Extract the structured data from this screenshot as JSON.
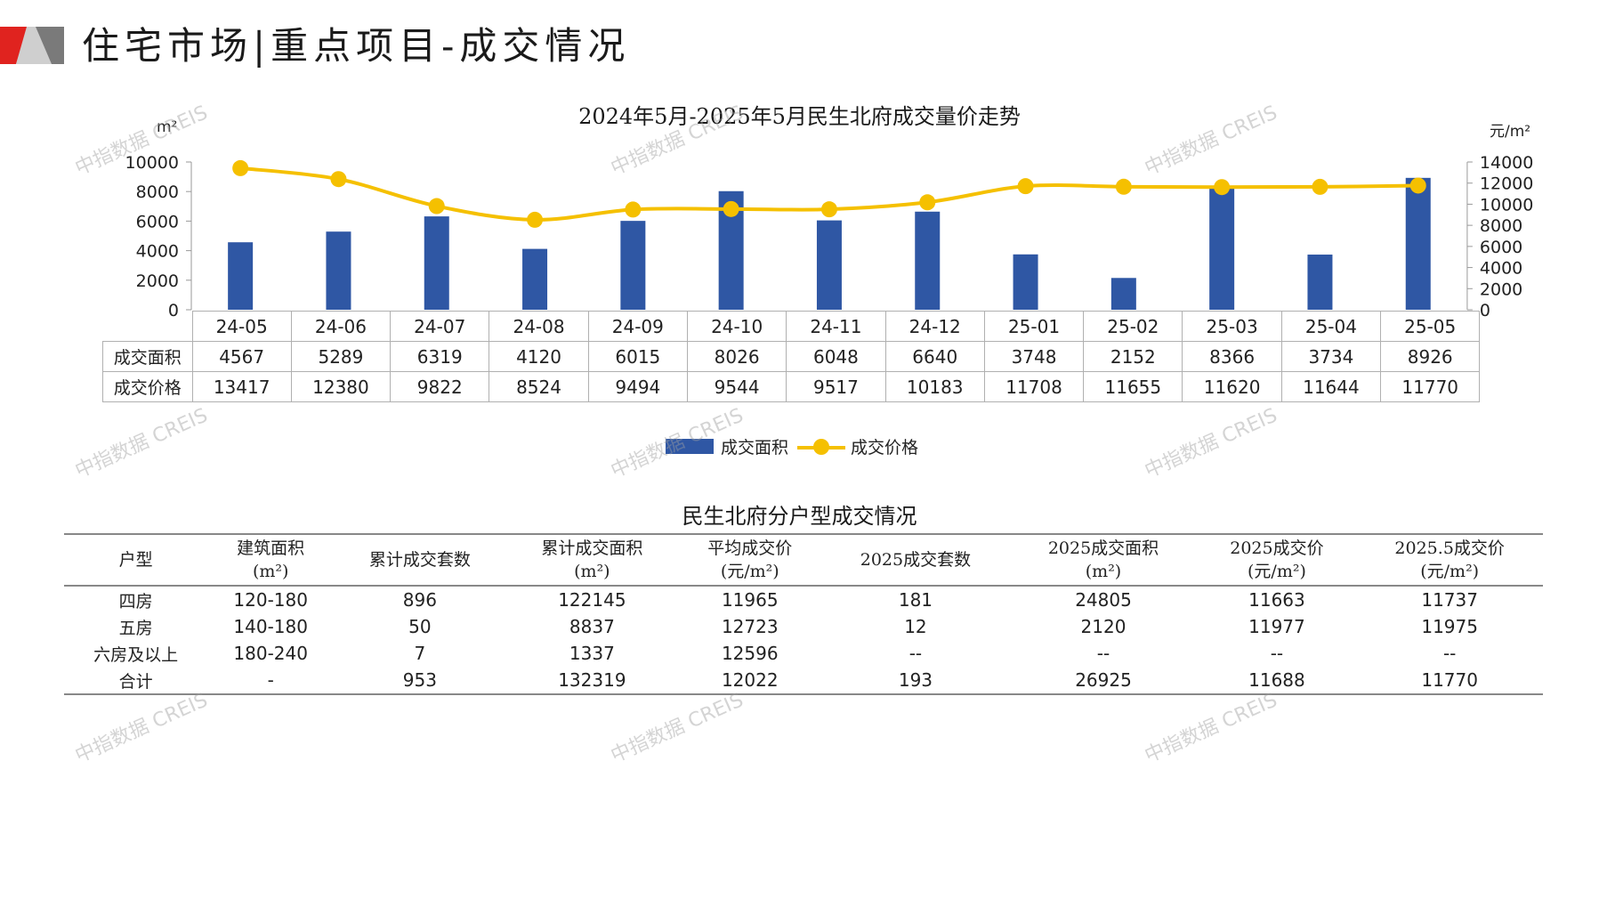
{
  "header": {
    "title": "住宅市场|重点项目-成交情况",
    "accent_colors": [
      "#e0231f",
      "#bdbdbd",
      "#6e6e6e"
    ]
  },
  "chart_data": {
    "type": "bar+line",
    "title": "2024年5月-2025年5月民生北府成交量价走势",
    "y_left_unit": "m²",
    "y_right_unit": "元/m²",
    "y_left_ticks": [
      "10000",
      "8000",
      "6000",
      "4000",
      "2000",
      "0"
    ],
    "y_right_ticks": [
      "14000",
      "12000",
      "10000",
      "8000",
      "6000",
      "4000",
      "2000",
      "0"
    ],
    "y_left_range": [
      0,
      10000
    ],
    "y_right_range": [
      0,
      14000
    ],
    "categories": [
      "24-05",
      "24-06",
      "24-07",
      "24-08",
      "24-09",
      "24-10",
      "24-11",
      "24-12",
      "25-01",
      "25-02",
      "25-03",
      "25-04",
      "25-05"
    ],
    "series": [
      {
        "name": "成交面积",
        "type": "bar",
        "axis": "left",
        "color": "#2f57a4",
        "values": [
          4567,
          5289,
          6319,
          4120,
          6015,
          8026,
          6048,
          6640,
          3748,
          2152,
          8366,
          3734,
          8926
        ]
      },
      {
        "name": "成交价格",
        "type": "line",
        "axis": "right",
        "color": "#f5c000",
        "values": [
          13417,
          12380,
          9822,
          8524,
          9494,
          9544,
          9517,
          10183,
          11708,
          11655,
          11620,
          11644,
          11770
        ]
      }
    ],
    "legend": "bottom-center",
    "grid": false
  },
  "data_table": {
    "row_labels": [
      "成交面积",
      "成交价格"
    ]
  },
  "watermark": "中指数据 CREIS",
  "type_table": {
    "title": "民生北府分户型成交情况",
    "headers": [
      [
        "户型",
        ""
      ],
      [
        "建筑面积",
        "(m²)"
      ],
      [
        "累计成交套数",
        ""
      ],
      [
        "累计成交面积",
        "(m²)"
      ],
      [
        "平均成交价",
        "(元/m²)"
      ],
      [
        "2025成交套数",
        ""
      ],
      [
        "2025成交面积",
        "(m²)"
      ],
      [
        "2025成交价",
        "(元/m²)"
      ],
      [
        "2025.5成交价",
        "(元/m²)"
      ]
    ],
    "rows": [
      [
        "四房",
        "120-180",
        "896",
        "122145",
        "11965",
        "181",
        "24805",
        "11663",
        "11737"
      ],
      [
        "五房",
        "140-180",
        "50",
        "8837",
        "12723",
        "12",
        "2120",
        "11977",
        "11975"
      ],
      [
        "六房及以上",
        "180-240",
        "7",
        "1337",
        "12596",
        "--",
        "--",
        "--",
        "--"
      ],
      [
        "合计",
        "-",
        "953",
        "132319",
        "12022",
        "193",
        "26925",
        "11688",
        "11770"
      ]
    ]
  }
}
